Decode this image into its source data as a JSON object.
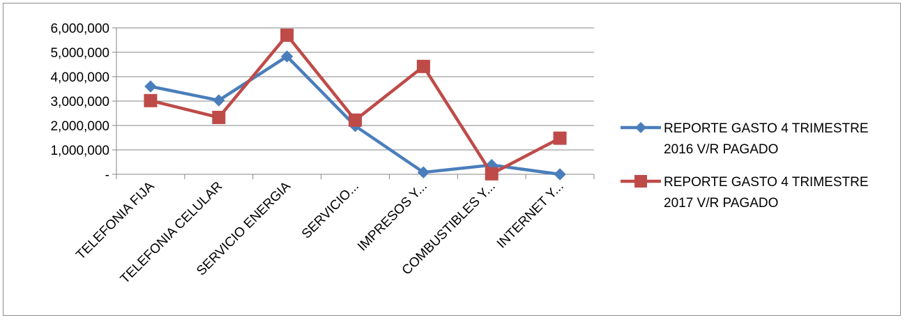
{
  "chart_data": {
    "type": "line",
    "title": "",
    "xlabel": "",
    "ylabel": "",
    "categories": [
      "TELEFONIA FIJA",
      "TELEFONIA CELULAR",
      "SERVICIO ENERGIA",
      "SERVICIO...",
      "IMPRESOS Y...",
      "COMBUSTIBLES Y...",
      "INTERNET Y..."
    ],
    "y_tick_labels": [
      "-",
      "1,000,000",
      "2,000,000",
      "3,000,000",
      "4,000,000",
      "5,000,000",
      "6,000,000"
    ],
    "ylim": [
      0,
      6000000
    ],
    "grid": true,
    "legend_position": "right",
    "series": [
      {
        "name": "REPORTE GASTO 4 TRIMESTRE 2016 V/R PAGADO",
        "name_lines": [
          "REPORTE GASTO 4 TRIMESTRE",
          "2016 V/R PAGADO"
        ],
        "color": "#4a7ebb",
        "marker": "diamond",
        "values": [
          3600000,
          3030000,
          4830000,
          1980000,
          80000,
          380000,
          0
        ]
      },
      {
        "name": "REPORTE GASTO 4 TRIMESTRE 2017 V/R PAGADO",
        "name_lines": [
          "REPORTE GASTO 4 TRIMESTRE",
          "2017 V/R PAGADO"
        ],
        "color": "#be4b48",
        "marker": "square",
        "values": [
          3020000,
          2330000,
          5700000,
          2220000,
          4420000,
          20000,
          1480000
        ]
      }
    ]
  }
}
